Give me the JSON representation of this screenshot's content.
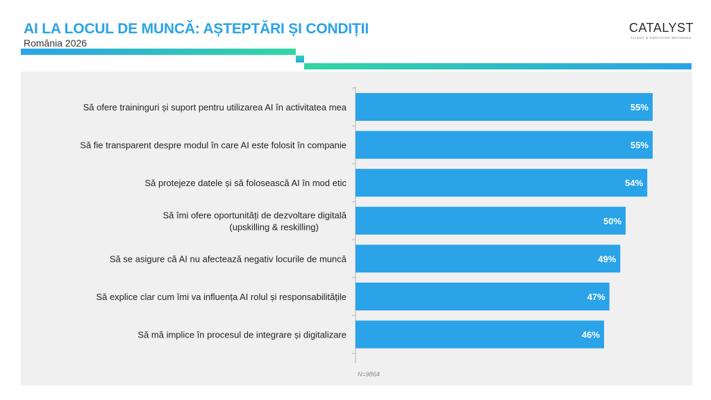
{
  "header": {
    "title": "AI LA LOCUL DE MUNCĂ: AȘTEPTĂRI ȘI CONDIȚII",
    "subtitle": "România 2026"
  },
  "logo": {
    "word": "CATALYST",
    "tagline": "TALENT & EMPLOYER BRANDING"
  },
  "colors": {
    "accent": "#2aa3e8",
    "accent_green": "#33d6a3",
    "bar": "#2aa3e8",
    "panel_background": "#f0f0f0"
  },
  "chart_data": {
    "type": "bar",
    "orientation": "horizontal",
    "categories": [
      [
        "Să ofere traininguri și suport pentru utilizarea AI în activitatea mea"
      ],
      [
        "Să fie transparent despre modul în care AI este folosit în companie"
      ],
      [
        "Să protejeze datele și să folosească AI în mod etic"
      ],
      [
        "Să îmi ofere oportunități de dezvoltare digitală",
        "(upskilling & reskilling)"
      ],
      [
        "Să se asigure că AI nu afectează negativ locurile de muncă"
      ],
      [
        "Să explice clar cum îmi va influența AI rolul și responsabilitățile"
      ],
      [
        "Să mă implice în procesul de integrare și digitalizare"
      ]
    ],
    "values": [
      55,
      55,
      54,
      50,
      49,
      47,
      46
    ],
    "value_labels": [
      "55%",
      "55%",
      "54%",
      "50%",
      "49%",
      "47%",
      "46%"
    ],
    "unit": "%",
    "xlim": [
      0,
      55
    ],
    "grid": false,
    "legend": "none"
  },
  "footnote": "N=9864"
}
